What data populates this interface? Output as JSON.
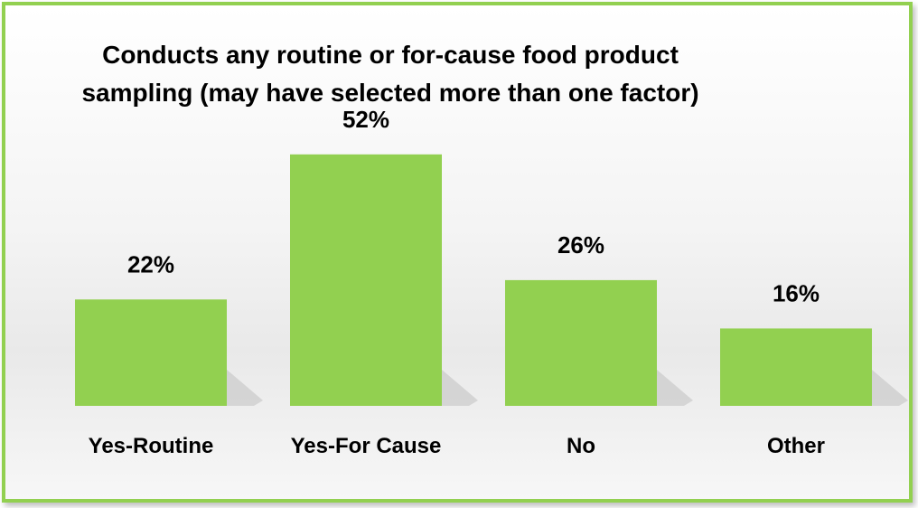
{
  "chart_data": {
    "type": "bar",
    "title": "Conducts any routine or for-cause food product sampling (may have selected more than one factor)",
    "title_lines": [
      "Conducts any routine or for-cause food product",
      "sampling (may have selected more than one factor)"
    ],
    "categories": [
      "Yes-Routine",
      "Yes-For Cause",
      "No",
      "Other"
    ],
    "values": [
      22,
      52,
      26,
      16
    ],
    "value_labels": [
      "22%",
      "52%",
      "26%",
      "16%"
    ],
    "ylim": [
      0,
      60
    ],
    "grid": false,
    "legend": "none",
    "bar_color": "#92d050",
    "border_color": "#92d050"
  }
}
